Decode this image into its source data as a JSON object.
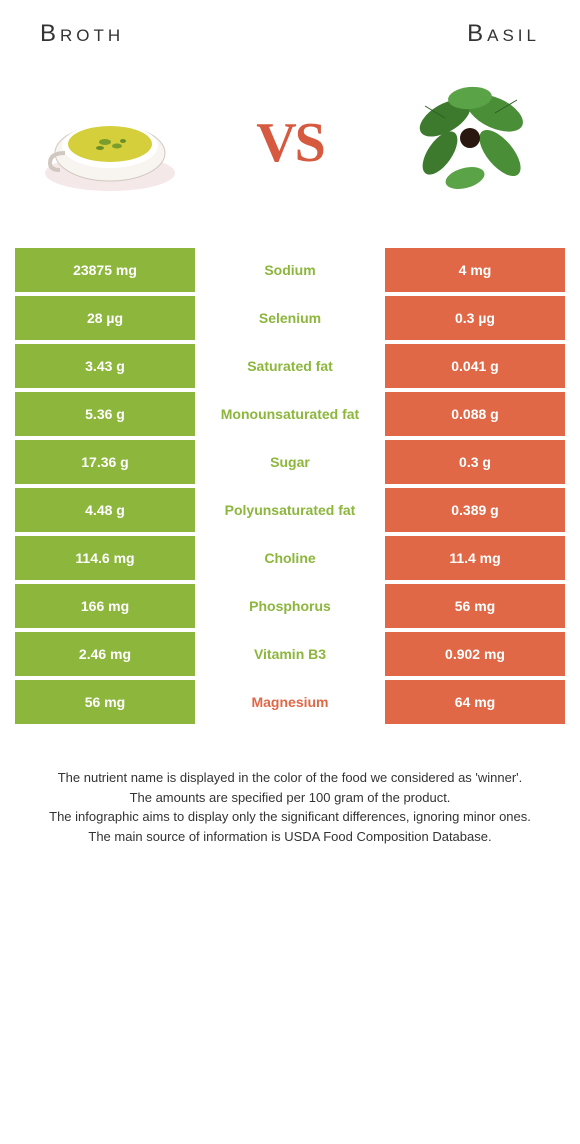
{
  "header": {
    "left_title": "Broth",
    "right_title": "Basil",
    "vs": "VS"
  },
  "colors": {
    "broth": "#8cb63c",
    "basil": "#e06847",
    "broth_text": "#8cb63c",
    "basil_text": "#e06847"
  },
  "rows": [
    {
      "left": "23875 mg",
      "label": "Sodium",
      "right": "4 mg",
      "winner": "left"
    },
    {
      "left": "28 µg",
      "label": "Selenium",
      "right": "0.3 µg",
      "winner": "left"
    },
    {
      "left": "3.43 g",
      "label": "Saturated fat",
      "right": "0.041 g",
      "winner": "left"
    },
    {
      "left": "5.36 g",
      "label": "Monounsaturated fat",
      "right": "0.088 g",
      "winner": "left"
    },
    {
      "left": "17.36 g",
      "label": "Sugar",
      "right": "0.3 g",
      "winner": "left"
    },
    {
      "left": "4.48 g",
      "label": "Polyunsaturated fat",
      "right": "0.389 g",
      "winner": "left"
    },
    {
      "left": "114.6 mg",
      "label": "Choline",
      "right": "11.4 mg",
      "winner": "left"
    },
    {
      "left": "166 mg",
      "label": "Phosphorus",
      "right": "56 mg",
      "winner": "left"
    },
    {
      "left": "2.46 mg",
      "label": "Vitamin B3",
      "right": "0.902 mg",
      "winner": "left"
    },
    {
      "left": "56 mg",
      "label": "Magnesium",
      "right": "64 mg",
      "winner": "right"
    }
  ],
  "footer": {
    "line1": "The nutrient name is displayed in the color of the food we considered as 'winner'.",
    "line2": "The amounts are specified per 100 gram of the product.",
    "line3": "The infographic aims to display only the significant differences, ignoring minor ones.",
    "line4": "The main source of information is USDA Food Composition Database."
  }
}
